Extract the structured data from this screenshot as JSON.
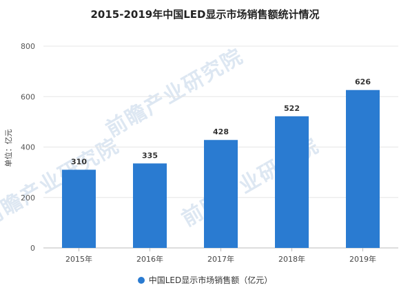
{
  "watermark_text": "前瞻产业研究院",
  "chart_data": {
    "type": "bar",
    "title": "2015-2019年中国LED显示市场销售额统计情况",
    "ylabel": "单位：亿元",
    "xlabel": "",
    "categories": [
      "2015年",
      "2016年",
      "2017年",
      "2018年",
      "2019年"
    ],
    "series": [
      {
        "name": "中国LED显示市场销售额（亿元）",
        "values": [
          310,
          335,
          428,
          522,
          626
        ],
        "color": "#2a7bd1"
      }
    ],
    "ylim": [
      0,
      800
    ],
    "yticks": [
      0,
      200,
      400,
      600,
      800
    ],
    "grid": true,
    "legend_position": "bottom"
  }
}
